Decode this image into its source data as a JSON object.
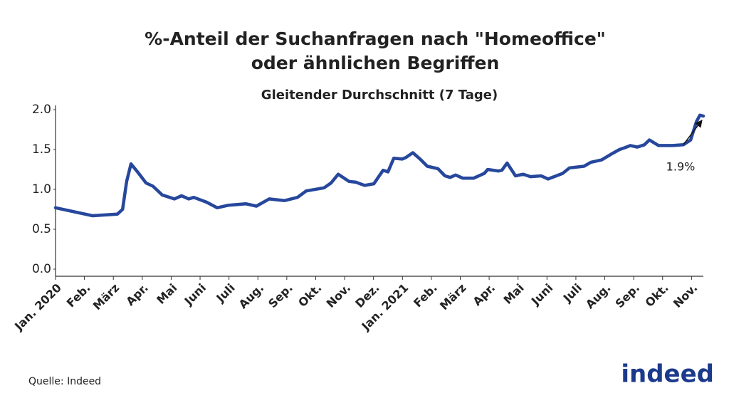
{
  "chart_data": {
    "type": "line",
    "title": [
      "%-Anteil der Suchanfragen nach \"Homeoffice\"",
      "oder ähnlichen Begriffen"
    ],
    "subtitle": "Gleitender Durchschnitt (7 Tage)",
    "source": "Quelle: Indeed",
    "logo": "indeed",
    "annotation": "1.9%",
    "xlim": [
      0,
      22.41
    ],
    "xticks": [
      {
        "value": 0,
        "label": "Jan. 2020"
      },
      {
        "value": 1,
        "label": "Feb."
      },
      {
        "value": 2,
        "label": "März"
      },
      {
        "value": 3,
        "label": "Apr."
      },
      {
        "value": 4,
        "label": "Mai"
      },
      {
        "value": 5,
        "label": "Juni"
      },
      {
        "value": 6,
        "label": "Juli"
      },
      {
        "value": 7,
        "label": "Aug."
      },
      {
        "value": 8,
        "label": "Sep."
      },
      {
        "value": 9,
        "label": "Okt."
      },
      {
        "value": 10,
        "label": "Nov."
      },
      {
        "value": 11,
        "label": "Dez."
      },
      {
        "value": 12,
        "label": "Jan. 2021"
      },
      {
        "value": 13,
        "label": "Feb."
      },
      {
        "value": 14,
        "label": "März"
      },
      {
        "value": 15,
        "label": "Apr."
      },
      {
        "value": 16,
        "label": "Mai"
      },
      {
        "value": 17,
        "label": "Juni"
      },
      {
        "value": 18,
        "label": "Juli"
      },
      {
        "value": 19,
        "label": "Aug."
      },
      {
        "value": 20,
        "label": "Sep."
      },
      {
        "value": 21,
        "label": "Okt."
      },
      {
        "value": 22,
        "label": "Nov."
      }
    ],
    "ylim": [
      0,
      2.0
    ],
    "yticks": [
      {
        "value": 0,
        "label": "0.0"
      },
      0.5,
      {
        "value": 1,
        "label": "1.0"
      },
      1.5,
      {
        "value": 2,
        "label": "2.0"
      }
    ],
    "grid": false,
    "x": [
      0,
      1.28,
      2.14,
      2.32,
      2.46,
      2.61,
      2.88,
      3.13,
      3.37,
      3.69,
      4.11,
      4.36,
      4.61,
      4.78,
      5.22,
      5.59,
      5.96,
      6.58,
      6.95,
      7.39,
      7.93,
      8.37,
      8.67,
      9.29,
      9.53,
      9.78,
      10.15,
      10.39,
      10.69,
      11.01,
      11.33,
      11.5,
      11.7,
      11.99,
      12.12,
      12.36,
      12.61,
      12.86,
      13.23,
      13.47,
      13.65,
      13.84,
      14.09,
      14.46,
      14.83,
      14.95,
      15.32,
      15.44,
      15.62,
      15.91,
      16.18,
      16.43,
      16.8,
      17.04,
      17.54,
      17.78,
      18.28,
      18.52,
      18.89,
      19.26,
      19.51,
      19.75,
      19.88,
      20.12,
      20.37,
      20.54,
      20.86,
      21.35,
      21.72,
      21.97,
      22.17,
      22.29,
      22.41
    ],
    "series": [
      {
        "color": "#26479c",
        "values": [
          0.77,
          0.67,
          0.69,
          0.75,
          1.1,
          1.32,
          1.2,
          1.08,
          1.04,
          0.93,
          0.88,
          0.92,
          0.88,
          0.9,
          0.84,
          0.77,
          0.8,
          0.82,
          0.79,
          0.88,
          0.86,
          0.9,
          0.98,
          1.02,
          1.08,
          1.19,
          1.1,
          1.09,
          1.05,
          1.07,
          1.24,
          1.22,
          1.39,
          1.38,
          1.4,
          1.46,
          1.38,
          1.29,
          1.26,
          1.17,
          1.15,
          1.18,
          1.14,
          1.14,
          1.2,
          1.25,
          1.23,
          1.24,
          1.33,
          1.17,
          1.19,
          1.16,
          1.17,
          1.13,
          1.2,
          1.27,
          1.29,
          1.34,
          1.37,
          1.45,
          1.5,
          1.53,
          1.55,
          1.53,
          1.56,
          1.62,
          1.55,
          1.55,
          1.56,
          1.62,
          1.85,
          1.93,
          1.92
        ]
      }
    ]
  }
}
